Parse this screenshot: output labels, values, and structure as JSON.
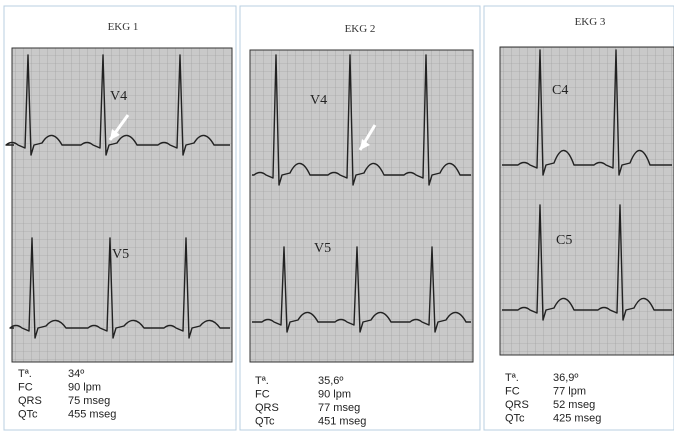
{
  "panels": [
    {
      "title": "EKG 1",
      "leads": [
        "V4",
        "V5"
      ],
      "rows": [
        [
          "Tª.",
          "34º"
        ],
        [
          "FC",
          "90 lpm"
        ],
        [
          "QRS",
          "75 mseg"
        ],
        [
          "QTc",
          "455 mseg"
        ]
      ]
    },
    {
      "title": "EKG 2",
      "leads": [
        "V4",
        "V5"
      ],
      "rows": [
        [
          "Tª.",
          "35,6º"
        ],
        [
          "FC",
          "90 lpm"
        ],
        [
          "QRS",
          "77 mseg"
        ],
        [
          "QTc",
          "451 mseg"
        ]
      ]
    },
    {
      "title": "EKG 3",
      "leads": [
        "C4",
        "C5"
      ],
      "rows": [
        [
          "Tª.",
          "36,9º"
        ],
        [
          "FC",
          "77 lpm"
        ],
        [
          "QRS",
          "52 mseg"
        ],
        [
          "QTc",
          "425 mseg"
        ]
      ]
    }
  ]
}
